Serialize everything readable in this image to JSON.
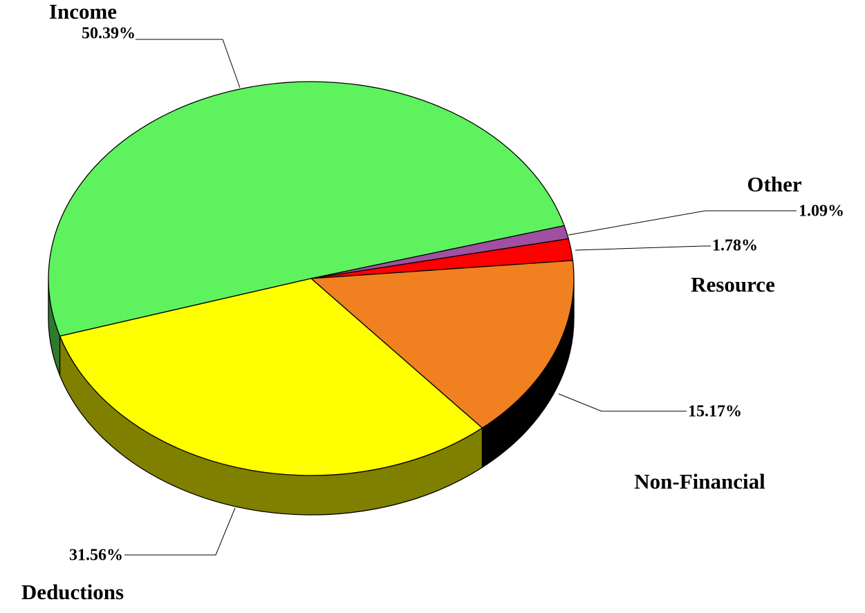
{
  "chart_data": {
    "type": "pie",
    "categories": [
      "Income",
      "Other",
      "Resource",
      "Non-Financial",
      "Deductions"
    ],
    "values": [
      50.39,
      1.09,
      1.78,
      15.17,
      31.56
    ],
    "value_labels": [
      "50.39%",
      "1.09%",
      "1.78%",
      "15.17%",
      "31.56%"
    ],
    "colors": [
      "#5ff25f",
      "#a050a0",
      "#ff0000",
      "#f08020",
      "#ffff00"
    ],
    "side_colors": [
      "#2e7a2e",
      "#502850",
      "#800000",
      "#000000",
      "#808000"
    ]
  }
}
